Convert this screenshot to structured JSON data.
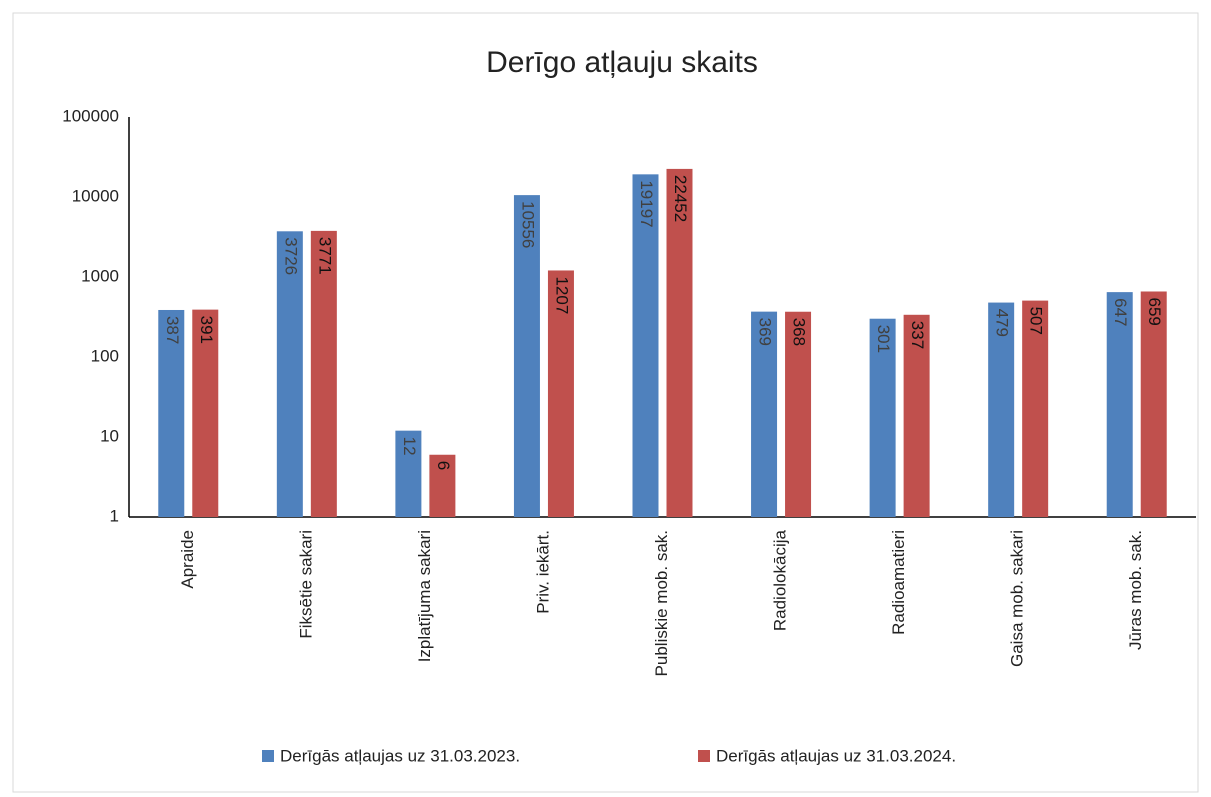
{
  "chart_data": {
    "type": "bar",
    "title": "Derīgo atļauju skaits",
    "categories": [
      "Apraide",
      "Fiksētie sakari",
      "Izplatījuma sakari",
      "Priv. iekārt.",
      "Publiskie mob. sak.",
      "Radiolokācija",
      "Radioamatieri",
      "Gaisa mob. sakari",
      "Jūras mob. sak."
    ],
    "series": [
      {
        "name": "Derīgās atļaujas uz 31.03.2023.",
        "color": "#4f81bd",
        "values": [
          387,
          3726,
          12,
          10556,
          19197,
          369,
          301,
          479,
          647
        ]
      },
      {
        "name": "Derīgās atļaujas uz 31.03.2024.",
        "color": "#c0504d",
        "values": [
          391,
          3771,
          6,
          1207,
          22452,
          368,
          337,
          507,
          659
        ]
      }
    ],
    "ylim": [
      1,
      100000
    ],
    "yticks": [
      1,
      10,
      100,
      1000,
      10000,
      100000
    ],
    "log_scale": true,
    "grid": false,
    "legend": "bottom"
  }
}
